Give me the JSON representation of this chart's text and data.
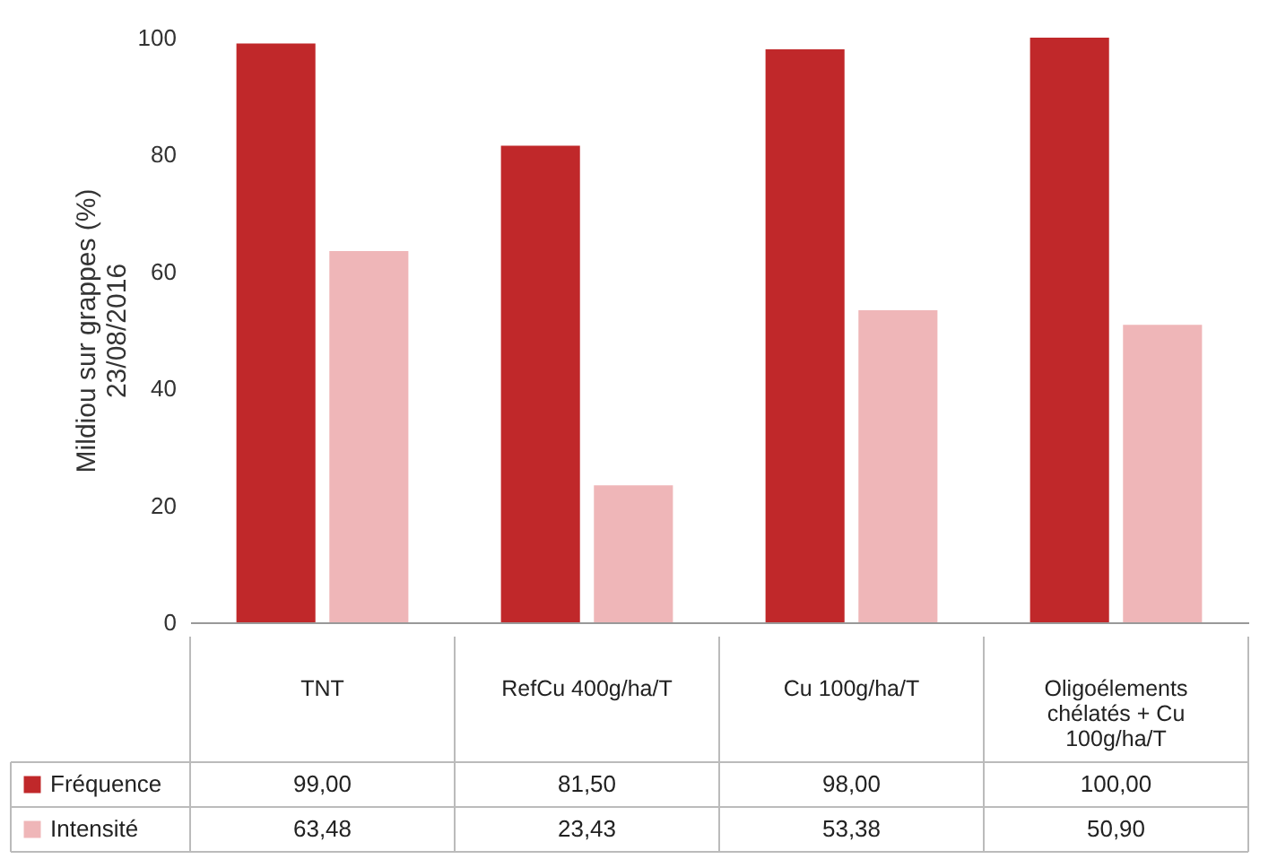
{
  "chart_data": {
    "type": "bar",
    "ylabel": "Mildiou sur grappes (%)\n23/08/2016",
    "categories": [
      "TNT",
      "RefCu 400g/ha/T",
      "Cu 100g/ha/T",
      "Oligoélements chélatés + Cu 100g/ha/T"
    ],
    "series": [
      {
        "name": "Fréquence",
        "color": "#c0282a",
        "values": [
          99.0,
          81.5,
          98.0,
          100.0
        ],
        "value_labels": [
          "99,00",
          "81,50",
          "98,00",
          "100,00"
        ]
      },
      {
        "name": "Intensité",
        "color": "#efb6b8",
        "values": [
          63.48,
          23.43,
          53.38,
          50.9
        ],
        "value_labels": [
          "63,48",
          "23,43",
          "53,38",
          "50,90"
        ]
      }
    ],
    "ylim": [
      0,
      100
    ],
    "yticks": [
      0,
      20,
      40,
      60,
      80,
      100
    ],
    "grid": false,
    "legend": "bottom left"
  }
}
